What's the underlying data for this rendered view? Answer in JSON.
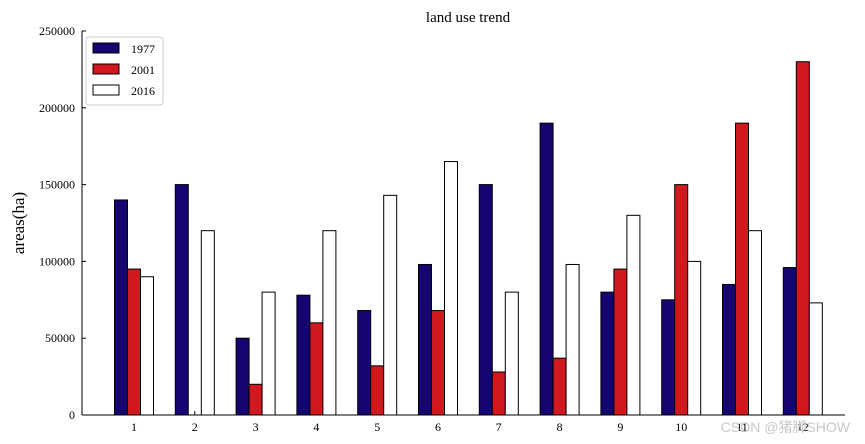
{
  "chart_data": {
    "type": "bar",
    "title": "land use trend",
    "xlabel": "",
    "ylabel": "areas(ha)",
    "ylim": [
      0,
      250000
    ],
    "yticks": [
      0,
      50000,
      100000,
      150000,
      200000,
      250000
    ],
    "categories": [
      "1",
      "2",
      "3",
      "4",
      "5",
      "6",
      "7",
      "8",
      "9",
      "10",
      "11",
      "12"
    ],
    "series": [
      {
        "name": "1977",
        "color": "#150573",
        "values": [
          140000,
          150000,
          50000,
          78000,
          68000,
          98000,
          150000,
          190000,
          80000,
          75000,
          85000,
          96000
        ]
      },
      {
        "name": "2001",
        "color": "#d0181e",
        "values": [
          95000,
          0,
          20000,
          60000,
          32000,
          68000,
          28000,
          37000,
          95000,
          150000,
          190000,
          230000
        ]
      },
      {
        "name": "2016",
        "color": "#ffffff",
        "values": [
          90000,
          120000,
          80000,
          120000,
          143000,
          165000,
          80000,
          98000,
          130000,
          100000,
          120000,
          73000
        ]
      }
    ],
    "grid": false,
    "legend": "top-left"
  },
  "watermark": "CSDN @猪脚SHOW"
}
